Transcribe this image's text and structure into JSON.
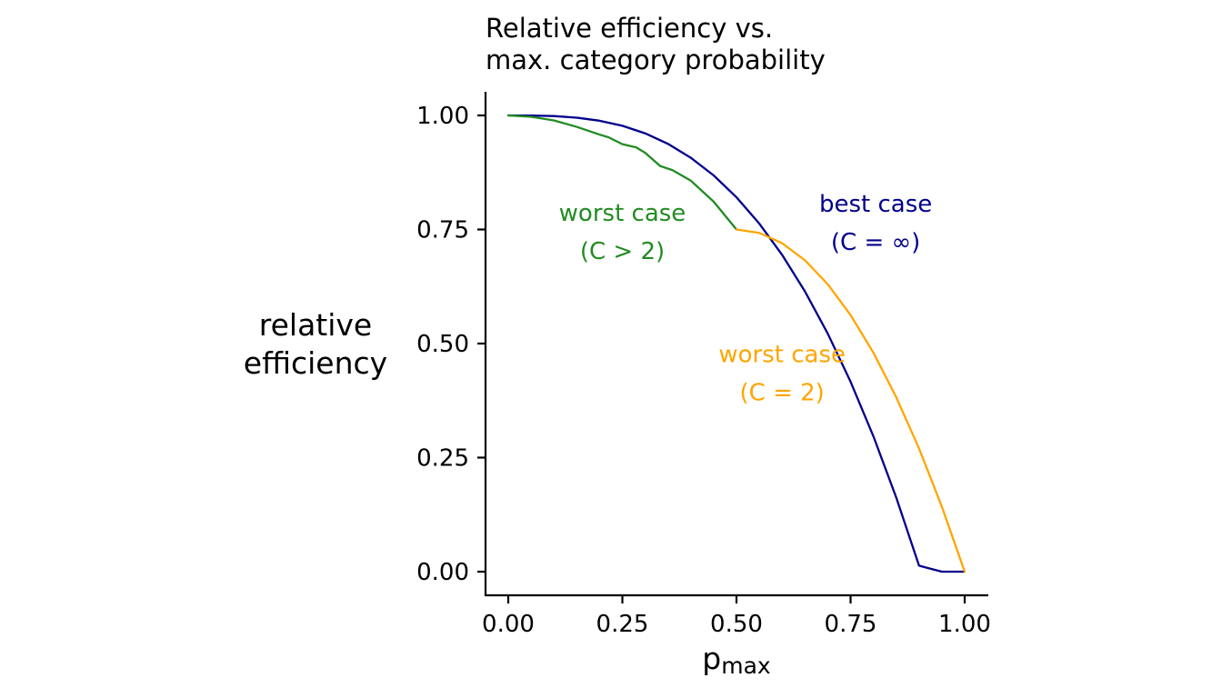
{
  "chart_data": {
    "type": "line",
    "title_lines": [
      "Relative efficiency vs.",
      "max. category probability"
    ],
    "xlabel": {
      "main": "p",
      "subscript": "max"
    },
    "ylabel_lines": [
      "relative",
      "efficiency"
    ],
    "xlim": [
      0,
      1
    ],
    "ylim": [
      0,
      1
    ],
    "x_ticks": [
      0,
      0.25,
      0.5,
      0.75,
      1
    ],
    "x_tick_labels": [
      "0.00",
      "0.25",
      "0.50",
      "0.75",
      "1.00"
    ],
    "y_ticks": [
      0,
      0.25,
      0.5,
      0.75,
      1
    ],
    "y_tick_labels": [
      "0.00",
      "0.25",
      "0.50",
      "0.75",
      "1.00"
    ],
    "grid": false,
    "series": [
      {
        "color": "#00008b",
        "x": [
          0,
          0.05,
          0.1,
          0.15,
          0.2,
          0.25,
          0.3,
          0.35,
          0.4,
          0.45,
          0.5,
          0.55,
          0.6,
          0.65,
          0.7,
          0.75,
          0.8,
          0.85,
          0.9,
          0.95,
          1
        ],
        "y": [
          1,
          0.9998,
          0.9986,
          0.9951,
          0.9884,
          0.9773,
          0.9607,
          0.9377,
          0.9072,
          0.8685,
          0.8206,
          0.7629,
          0.6944,
          0.6143,
          0.5218,
          0.4163,
          0.2968,
          0.1626,
          0.0131,
          0,
          0
        ]
      },
      {
        "color": "#228b22",
        "x": [
          0,
          0.05,
          0.1,
          0.15,
          0.2,
          0.22,
          0.25,
          0.28,
          0.3,
          0.333,
          0.36,
          0.4,
          0.45,
          0.5
        ],
        "y": [
          1,
          0.997,
          0.989,
          0.975,
          0.958,
          0.952,
          0.937,
          0.93,
          0.918,
          0.889,
          0.88,
          0.857,
          0.811,
          0.75
        ]
      },
      {
        "color": "#ffa500",
        "x": [
          0.5,
          0.55,
          0.6,
          0.65,
          0.7,
          0.75,
          0.8,
          0.85,
          0.9,
          0.95,
          1
        ],
        "y": [
          0.75,
          0.7425,
          0.72,
          0.6825,
          0.63,
          0.5625,
          0.48,
          0.3825,
          0.27,
          0.1425,
          0
        ]
      }
    ],
    "annotations": [
      {
        "lines": [
          "best case",
          "(C = ∞)"
        ],
        "color": "#00008b",
        "x": 0.805,
        "y": 0.765
      },
      {
        "lines": [
          "worst case",
          "(C > 2)"
        ],
        "color": "#228b22",
        "x": 0.25,
        "y": 0.745
      },
      {
        "lines": [
          "worst case",
          "(C = 2)"
        ],
        "color": "#ffa500",
        "x": 0.6,
        "y": 0.435
      }
    ]
  }
}
